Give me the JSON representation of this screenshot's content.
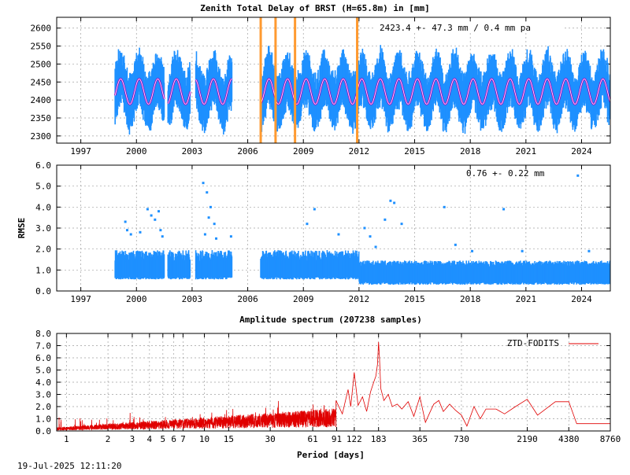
{
  "footer": {
    "timestamp": "19-Jul-2025 12:11:20"
  },
  "colors": {
    "data_blue": "#1e90ff",
    "fit_purple": "#a000c0",
    "break_orange": "#ff9a30",
    "spectrum_red": "#e00000",
    "grid": "#a0a0a0"
  },
  "chart_data": [
    {
      "type": "scatter",
      "title": "Zenith Total Delay of BRST (H=65.8m) in [mm]",
      "stats_label": "2423.4 +-  47.3 mm /  0.4 mm pa",
      "xlabel": "",
      "ylabel": "",
      "xlim": [
        1995.7,
        2025.55
      ],
      "ylim": [
        2280,
        2630
      ],
      "x_ticks": [
        1997,
        2000,
        2003,
        2006,
        2009,
        2012,
        2015,
        2018,
        2021,
        2024
      ],
      "x_tick_labels": [
        "1997",
        "2000",
        "2003",
        "2006",
        "2009",
        "2012",
        "2015",
        "2018",
        "2021",
        "2024"
      ],
      "y_ticks": [
        2300,
        2350,
        2400,
        2450,
        2500,
        2550,
        2600
      ],
      "y_tick_labels": [
        "2300",
        "2350",
        "2400",
        "2450",
        "2500",
        "2550",
        "2600"
      ],
      "grid": true,
      "data_segments": [
        [
          1998.85,
          2001.5
        ],
        [
          2001.7,
          2002.9
        ],
        [
          2003.2,
          2005.15
        ],
        [
          2006.7,
          2025.55
        ]
      ],
      "mean": 2423.4,
      "seasonal_amplitude": 35,
      "seasonal_peak": 0.15,
      "breaks": [
        2006.7,
        2007.5,
        2008.55,
        2011.9
      ],
      "series": [
        {
          "name": "",
          "role": "observations",
          "color": "#1e90ff"
        },
        {
          "name": "",
          "role": "seasonal model",
          "color": "#a000c0"
        }
      ]
    },
    {
      "type": "scatter",
      "title": "",
      "stats_label": "0.76 +-  0.22 mm",
      "xlabel": "",
      "ylabel": "RMSE",
      "xlim": [
        1995.7,
        2025.55
      ],
      "ylim": [
        0,
        6
      ],
      "x_ticks": [
        1997,
        2000,
        2003,
        2006,
        2009,
        2012,
        2015,
        2018,
        2021,
        2024
      ],
      "x_tick_labels": [
        "1997",
        "2000",
        "2003",
        "2006",
        "2009",
        "2012",
        "2015",
        "2018",
        "2021",
        "2024"
      ],
      "y_ticks": [
        0,
        1,
        2,
        3,
        4,
        5,
        6
      ],
      "y_tick_labels": [
        "0.0",
        "1.0",
        "2.0",
        "3.0",
        "4.0",
        "5.0",
        "6.0"
      ],
      "grid": true,
      "outliers": [
        [
          1999.4,
          3.3
        ],
        [
          1999.5,
          2.9
        ],
        [
          1999.7,
          2.7
        ],
        [
          2000.2,
          2.8
        ],
        [
          2000.6,
          3.9
        ],
        [
          2000.8,
          3.6
        ],
        [
          2001.0,
          3.4
        ],
        [
          2001.2,
          3.8
        ],
        [
          2001.4,
          2.6
        ],
        [
          2001.3,
          2.9
        ],
        [
          2003.6,
          5.15
        ],
        [
          2003.8,
          4.7
        ],
        [
          2003.9,
          3.5
        ],
        [
          2003.7,
          2.7
        ],
        [
          2004.2,
          3.2
        ],
        [
          2004.3,
          2.5
        ],
        [
          2004.0,
          4.0
        ],
        [
          2005.1,
          2.6
        ],
        [
          2009.6,
          3.9
        ],
        [
          2009.2,
          3.2
        ],
        [
          2010.9,
          2.7
        ],
        [
          2012.3,
          3.0
        ],
        [
          2012.6,
          2.6
        ],
        [
          2013.7,
          4.3
        ],
        [
          2013.9,
          4.2
        ],
        [
          2013.4,
          3.4
        ],
        [
          2012.9,
          2.1
        ],
        [
          2016.6,
          4.0
        ],
        [
          2017.2,
          2.2
        ],
        [
          2018.1,
          1.9
        ],
        [
          2019.8,
          3.9
        ],
        [
          2023.8,
          5.5
        ],
        [
          2024.4,
          1.9
        ],
        [
          2020.8,
          1.9
        ],
        [
          2014.3,
          3.2
        ]
      ]
    },
    {
      "type": "line",
      "title": "Amplitude spectrum (207238 samples)",
      "xlabel": "Period [days]",
      "ylabel": "",
      "x_scale": "log",
      "xlim": [
        0.85,
        8760
      ],
      "ylim": [
        0,
        8
      ],
      "x_ticks": [
        1,
        2,
        3,
        4,
        5,
        6,
        7,
        10,
        15,
        30,
        61,
        91,
        122,
        183,
        365,
        730,
        2190,
        4380,
        8760
      ],
      "x_tick_labels": [
        "1",
        "2",
        "3",
        "4",
        "5",
        "6",
        "7",
        "10",
        "15",
        "30",
        "61",
        "91",
        "122",
        "183",
        "365",
        "730",
        "2190",
        "4380",
        "8760"
      ],
      "y_ticks": [
        0,
        1,
        2,
        3,
        4,
        5,
        6,
        7,
        8
      ],
      "y_tick_labels": [
        "0.0",
        "1.0",
        "2.0",
        "3.0",
        "4.0",
        "5.0",
        "6.0",
        "7.0",
        "8.0"
      ],
      "grid": true,
      "legend_position": "top-right",
      "series": [
        {
          "name": "ZTD-FODITS",
          "color": "#e00000",
          "points": [
            [
              90,
              2.5
            ],
            [
              100,
              1.4
            ],
            [
              110,
              3.4
            ],
            [
              115,
              2.0
            ],
            [
              122,
              4.8
            ],
            [
              130,
              2.1
            ],
            [
              140,
              2.8
            ],
            [
              150,
              1.6
            ],
            [
              160,
              3.2
            ],
            [
              170,
              4.1
            ],
            [
              175,
              4.5
            ],
            [
              180,
              5.5
            ],
            [
              183,
              7.3
            ],
            [
              186,
              6.0
            ],
            [
              190,
              3.5
            ],
            [
              200,
              2.5
            ],
            [
              215,
              3.0
            ],
            [
              230,
              2.0
            ],
            [
              250,
              2.2
            ],
            [
              270,
              1.8
            ],
            [
              300,
              2.4
            ],
            [
              330,
              1.2
            ],
            [
              365,
              2.8
            ],
            [
              400,
              0.7
            ],
            [
              430,
              1.5
            ],
            [
              460,
              2.2
            ],
            [
              500,
              2.5
            ],
            [
              540,
              1.6
            ],
            [
              600,
              2.2
            ],
            [
              660,
              1.7
            ],
            [
              730,
              1.3
            ],
            [
              800,
              0.4
            ],
            [
              900,
              2.0
            ],
            [
              1000,
              1.0
            ],
            [
              1100,
              1.8
            ],
            [
              1300,
              1.8
            ],
            [
              1500,
              1.4
            ],
            [
              1800,
              2.0
            ],
            [
              2190,
              2.6
            ],
            [
              2600,
              1.3
            ],
            [
              3500,
              2.4
            ],
            [
              4380,
              2.4
            ],
            [
              5000,
              0.6
            ],
            [
              8760,
              0.6
            ]
          ]
        }
      ]
    }
  ]
}
